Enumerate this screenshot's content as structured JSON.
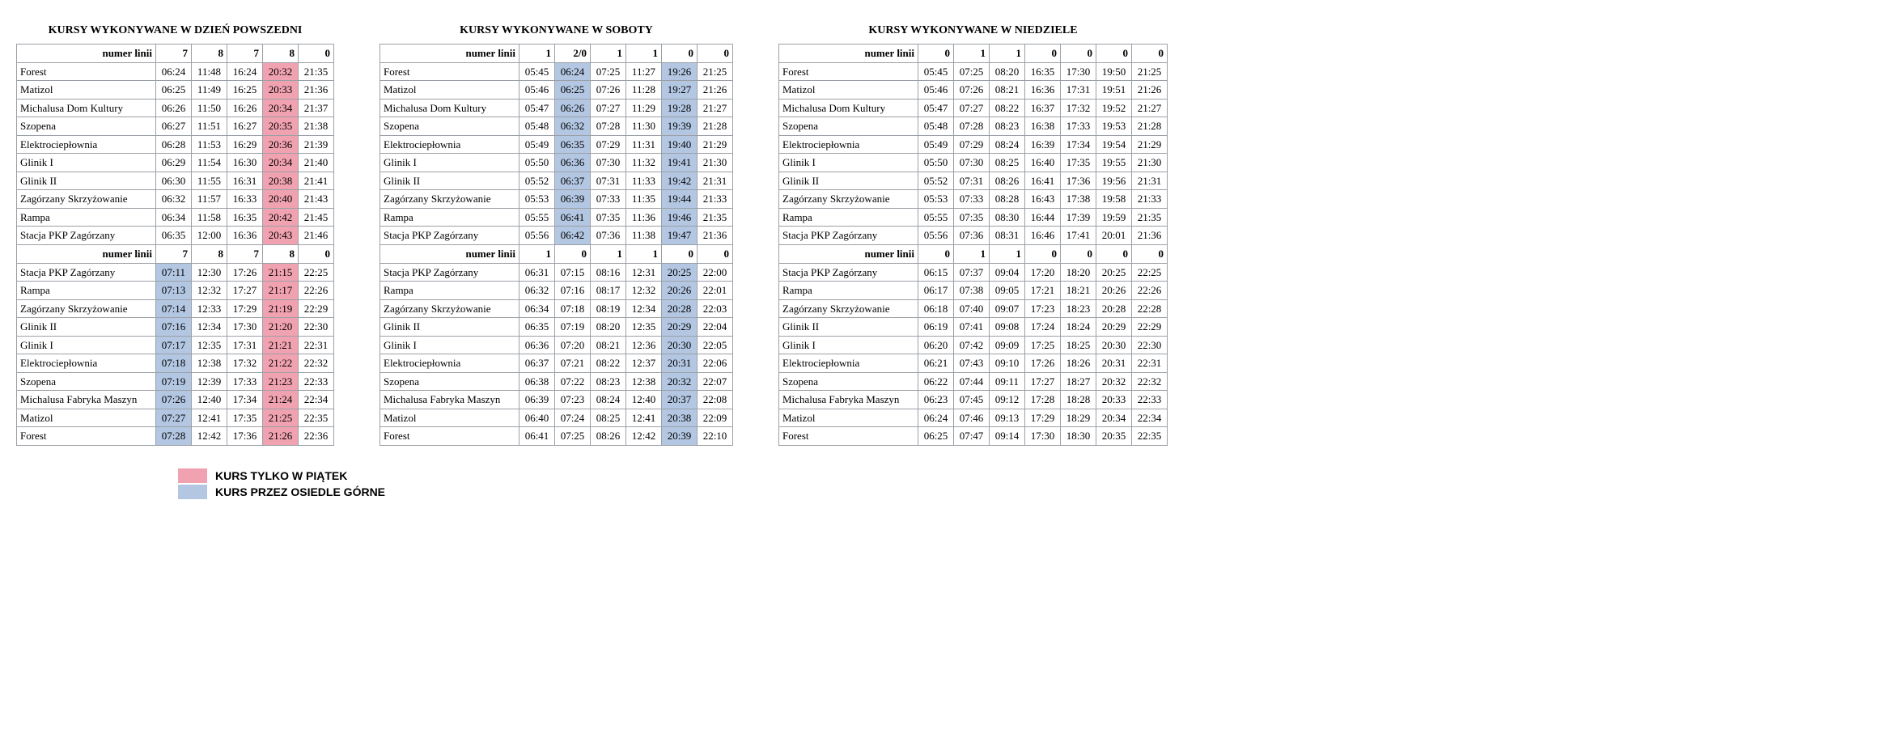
{
  "colors": {
    "pink": "#f1a2b0",
    "blue": "#b3c7e2",
    "border": "#9ba0a6",
    "bg": "#ffffff"
  },
  "legend": [
    {
      "color_key": "pink",
      "label": "KURS TYLKO W PIĄTEK"
    },
    {
      "color_key": "blue",
      "label": "KURS PRZEZ OSIEDLE GÓRNE"
    }
  ],
  "line_header_label": "numer linii",
  "stops_out": [
    "Forest",
    "Matizol",
    "Michalusa Dom Kultury",
    "Szopena",
    "Elektrociepłownia",
    "Glinik I",
    "Glinik II",
    "Zagórzany Skrzyżowanie",
    "Rampa",
    "Stacja PKP Zagórzany"
  ],
  "stops_back": [
    "Stacja PKP Zagórzany",
    "Rampa",
    "Zagórzany Skrzyżowanie",
    "Glinik II",
    "Glinik I",
    "Elektrociepłownia",
    "Szopena",
    "Michalusa Fabryka Maszyn",
    "Matizol",
    "Forest"
  ],
  "panels": [
    {
      "title": "KURSY WYKONYWANE W DZIEŃ POWSZEDNI",
      "stop_col_width": 172,
      "out": {
        "lines": [
          "7",
          "8",
          "7",
          "8",
          "0"
        ],
        "col_hl": [
          null,
          null,
          null,
          "pink",
          null
        ],
        "rows": [
          [
            "06:24",
            "11:48",
            "16:24",
            "20:32",
            "21:35"
          ],
          [
            "06:25",
            "11:49",
            "16:25",
            "20:33",
            "21:36"
          ],
          [
            "06:26",
            "11:50",
            "16:26",
            "20:34",
            "21:37"
          ],
          [
            "06:27",
            "11:51",
            "16:27",
            "20:35",
            "21:38"
          ],
          [
            "06:28",
            "11:53",
            "16:29",
            "20:36",
            "21:39"
          ],
          [
            "06:29",
            "11:54",
            "16:30",
            "20:34",
            "21:40"
          ],
          [
            "06:30",
            "11:55",
            "16:31",
            "20:38",
            "21:41"
          ],
          [
            "06:32",
            "11:57",
            "16:33",
            "20:40",
            "21:43"
          ],
          [
            "06:34",
            "11:58",
            "16:35",
            "20:42",
            "21:45"
          ],
          [
            "06:35",
            "12:00",
            "16:36",
            "20:43",
            "21:46"
          ]
        ]
      },
      "back": {
        "lines": [
          "7",
          "8",
          "7",
          "8",
          "0"
        ],
        "col_hl": [
          "blue",
          null,
          null,
          "pink",
          null
        ],
        "rows": [
          [
            "07:11",
            "12:30",
            "17:26",
            "21:15",
            "22:25"
          ],
          [
            "07:13",
            "12:32",
            "17:27",
            "21:17",
            "22:26"
          ],
          [
            "07:14",
            "12:33",
            "17:29",
            "21:19",
            "22:29"
          ],
          [
            "07:16",
            "12:34",
            "17:30",
            "21:20",
            "22:30"
          ],
          [
            "07:17",
            "12:35",
            "17:31",
            "21:21",
            "22:31"
          ],
          [
            "07:18",
            "12:38",
            "17:32",
            "21:22",
            "22:32"
          ],
          [
            "07:19",
            "12:39",
            "17:33",
            "21:23",
            "22:33"
          ],
          [
            "07:26",
            "12:40",
            "17:34",
            "21:24",
            "22:34"
          ],
          [
            "07:27",
            "12:41",
            "17:35",
            "21:25",
            "22:35"
          ],
          [
            "07:28",
            "12:42",
            "17:36",
            "21:26",
            "22:36"
          ]
        ]
      }
    },
    {
      "title": "KURSY WYKONYWANE W SOBOTY",
      "stop_col_width": 172,
      "out": {
        "lines": [
          "1",
          "2/0",
          "1",
          "1",
          "0",
          "0"
        ],
        "col_hl": [
          null,
          "blue",
          null,
          null,
          "blue",
          null
        ],
        "rows": [
          [
            "05:45",
            "06:24",
            "07:25",
            "11:27",
            "19:26",
            "21:25"
          ],
          [
            "05:46",
            "06:25",
            "07:26",
            "11:28",
            "19:27",
            "21:26"
          ],
          [
            "05:47",
            "06:26",
            "07:27",
            "11:29",
            "19:28",
            "21:27"
          ],
          [
            "05:48",
            "06:32",
            "07:28",
            "11:30",
            "19:39",
            "21:28"
          ],
          [
            "05:49",
            "06:35",
            "07:29",
            "11:31",
            "19:40",
            "21:29"
          ],
          [
            "05:50",
            "06:36",
            "07:30",
            "11:32",
            "19:41",
            "21:30"
          ],
          [
            "05:52",
            "06:37",
            "07:31",
            "11:33",
            "19:42",
            "21:31"
          ],
          [
            "05:53",
            "06:39",
            "07:33",
            "11:35",
            "19:44",
            "21:33"
          ],
          [
            "05:55",
            "06:41",
            "07:35",
            "11:36",
            "19:46",
            "21:35"
          ],
          [
            "05:56",
            "06:42",
            "07:36",
            "11:38",
            "19:47",
            "21:36"
          ]
        ]
      },
      "back": {
        "lines": [
          "1",
          "0",
          "1",
          "1",
          "0",
          "0"
        ],
        "col_hl": [
          null,
          null,
          null,
          null,
          "blue",
          null
        ],
        "rows": [
          [
            "06:31",
            "07:15",
            "08:16",
            "12:31",
            "20:25",
            "22:00"
          ],
          [
            "06:32",
            "07:16",
            "08:17",
            "12:32",
            "20:26",
            "22:01"
          ],
          [
            "06:34",
            "07:18",
            "08:19",
            "12:34",
            "20:28",
            "22:03"
          ],
          [
            "06:35",
            "07:19",
            "08:20",
            "12:35",
            "20:29",
            "22:04"
          ],
          [
            "06:36",
            "07:20",
            "08:21",
            "12:36",
            "20:30",
            "22:05"
          ],
          [
            "06:37",
            "07:21",
            "08:22",
            "12:37",
            "20:31",
            "22:06"
          ],
          [
            "06:38",
            "07:22",
            "08:23",
            "12:38",
            "20:32",
            "22:07"
          ],
          [
            "06:39",
            "07:23",
            "08:24",
            "12:40",
            "20:37",
            "22:08"
          ],
          [
            "06:40",
            "07:24",
            "08:25",
            "12:41",
            "20:38",
            "22:09"
          ],
          [
            "06:41",
            "07:25",
            "08:26",
            "12:42",
            "20:39",
            "22:10"
          ]
        ]
      }
    },
    {
      "title": "KURSY WYKONYWANE W NIEDZIELE",
      "stop_col_width": 172,
      "out": {
        "lines": [
          "0",
          "1",
          "1",
          "0",
          "0",
          "0",
          "0"
        ],
        "col_hl": [
          null,
          null,
          null,
          null,
          null,
          null,
          null
        ],
        "rows": [
          [
            "05:45",
            "07:25",
            "08:20",
            "16:35",
            "17:30",
            "19:50",
            "21:25"
          ],
          [
            "05:46",
            "07:26",
            "08:21",
            "16:36",
            "17:31",
            "19:51",
            "21:26"
          ],
          [
            "05:47",
            "07:27",
            "08:22",
            "16:37",
            "17:32",
            "19:52",
            "21:27"
          ],
          [
            "05:48",
            "07:28",
            "08:23",
            "16:38",
            "17:33",
            "19:53",
            "21:28"
          ],
          [
            "05:49",
            "07:29",
            "08:24",
            "16:39",
            "17:34",
            "19:54",
            "21:29"
          ],
          [
            "05:50",
            "07:30",
            "08:25",
            "16:40",
            "17:35",
            "19:55",
            "21:30"
          ],
          [
            "05:52",
            "07:31",
            "08:26",
            "16:41",
            "17:36",
            "19:56",
            "21:31"
          ],
          [
            "05:53",
            "07:33",
            "08:28",
            "16:43",
            "17:38",
            "19:58",
            "21:33"
          ],
          [
            "05:55",
            "07:35",
            "08:30",
            "16:44",
            "17:39",
            "19:59",
            "21:35"
          ],
          [
            "05:56",
            "07:36",
            "08:31",
            "16:46",
            "17:41",
            "20:01",
            "21:36"
          ]
        ]
      },
      "back": {
        "lines": [
          "0",
          "1",
          "1",
          "0",
          "0",
          "0",
          "0"
        ],
        "col_hl": [
          null,
          null,
          null,
          null,
          null,
          null,
          null
        ],
        "rows": [
          [
            "06:15",
            "07:37",
            "09:04",
            "17:20",
            "18:20",
            "20:25",
            "22:25"
          ],
          [
            "06:17",
            "07:38",
            "09:05",
            "17:21",
            "18:21",
            "20:26",
            "22:26"
          ],
          [
            "06:18",
            "07:40",
            "09:07",
            "17:23",
            "18:23",
            "20:28",
            "22:28"
          ],
          [
            "06:19",
            "07:41",
            "09:08",
            "17:24",
            "18:24",
            "20:29",
            "22:29"
          ],
          [
            "06:20",
            "07:42",
            "09:09",
            "17:25",
            "18:25",
            "20:30",
            "22:30"
          ],
          [
            "06:21",
            "07:43",
            "09:10",
            "17:26",
            "18:26",
            "20:31",
            "22:31"
          ],
          [
            "06:22",
            "07:44",
            "09:11",
            "17:27",
            "18:27",
            "20:32",
            "22:32"
          ],
          [
            "06:23",
            "07:45",
            "09:12",
            "17:28",
            "18:28",
            "20:33",
            "22:33"
          ],
          [
            "06:24",
            "07:46",
            "09:13",
            "17:29",
            "18:29",
            "20:34",
            "22:34"
          ],
          [
            "06:25",
            "07:47",
            "09:14",
            "17:30",
            "18:30",
            "20:35",
            "22:35"
          ]
        ]
      }
    }
  ]
}
